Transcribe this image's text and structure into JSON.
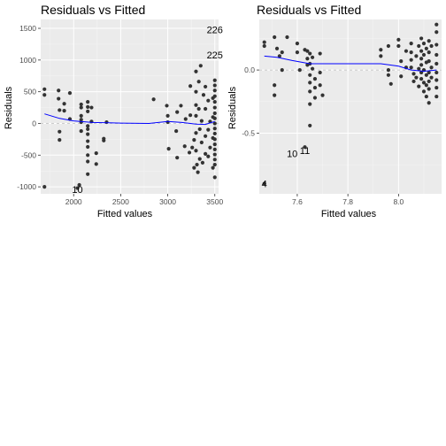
{
  "chart_data": [
    {
      "type": "scatter",
      "title": "Residuals vs Fitted",
      "xlabel": "Fitted values",
      "ylabel": "Residuals",
      "xlim": [
        1650,
        3540
      ],
      "ylim": [
        -1110,
        1640
      ],
      "xticks": [
        2000,
        2500,
        3000,
        3500
      ],
      "yticks": [
        -1000,
        -500,
        0,
        500,
        1000,
        1500
      ],
      "grid": true,
      "panel_bg": "#ebebeb",
      "point_color": "#333333",
      "smooth_color": "#0000ff",
      "zero_line_color": "#bdbdbd",
      "smooth": [
        [
          1690,
          150
        ],
        [
          1850,
          80
        ],
        [
          2000,
          40
        ],
        [
          2200,
          15
        ],
        [
          2500,
          5
        ],
        [
          2800,
          0
        ],
        [
          3000,
          30
        ],
        [
          3150,
          15
        ],
        [
          3300,
          -10
        ],
        [
          3400,
          -15
        ],
        [
          3500,
          30
        ]
      ],
      "labels": [
        {
          "text": "226",
          "x": 3500,
          "y": 1480
        },
        {
          "text": "225",
          "x": 3500,
          "y": 1085
        },
        {
          "text": "10",
          "x": 2040,
          "y": -1040
        }
      ],
      "points": [
        [
          1690,
          -1000
        ],
        [
          1690,
          540
        ],
        [
          1690,
          450
        ],
        [
          1840,
          520
        ],
        [
          1840,
          390
        ],
        [
          1850,
          -130
        ],
        [
          1850,
          -260
        ],
        [
          1850,
          210
        ],
        [
          1900,
          310
        ],
        [
          1900,
          200
        ],
        [
          1960,
          480
        ],
        [
          1960,
          70
        ],
        [
          2040,
          -1020
        ],
        [
          2060,
          -970
        ],
        [
          2080,
          300
        ],
        [
          2080,
          250
        ],
        [
          2080,
          120
        ],
        [
          2080,
          60
        ],
        [
          2080,
          20
        ],
        [
          2080,
          -120
        ],
        [
          2150,
          340
        ],
        [
          2150,
          260
        ],
        [
          2150,
          190
        ],
        [
          2150,
          -40
        ],
        [
          2150,
          -90
        ],
        [
          2150,
          -170
        ],
        [
          2150,
          -280
        ],
        [
          2150,
          -370
        ],
        [
          2150,
          -500
        ],
        [
          2150,
          -600
        ],
        [
          2150,
          -800
        ],
        [
          2190,
          250
        ],
        [
          2190,
          30
        ],
        [
          2240,
          -470
        ],
        [
          2240,
          -640
        ],
        [
          2320,
          -240
        ],
        [
          2320,
          -270
        ],
        [
          2350,
          20
        ],
        [
          2850,
          380
        ],
        [
          2990,
          280
        ],
        [
          3000,
          20
        ],
        [
          3010,
          -400
        ],
        [
          3000,
          120
        ],
        [
          3090,
          -120
        ],
        [
          3100,
          180
        ],
        [
          3100,
          -540
        ],
        [
          3140,
          280
        ],
        [
          3180,
          -360
        ],
        [
          3190,
          70
        ],
        [
          3230,
          -460
        ],
        [
          3240,
          590
        ],
        [
          3240,
          130
        ],
        [
          3260,
          -380
        ],
        [
          3280,
          -260
        ],
        [
          3280,
          -700
        ],
        [
          3300,
          820
        ],
        [
          3300,
          500
        ],
        [
          3300,
          290
        ],
        [
          3300,
          120
        ],
        [
          3300,
          -150
        ],
        [
          3300,
          -430
        ],
        [
          3310,
          -650
        ],
        [
          3320,
          -770
        ],
        [
          3330,
          660
        ],
        [
          3330,
          230
        ],
        [
          3340,
          -90
        ],
        [
          3340,
          -560
        ],
        [
          3350,
          910
        ],
        [
          3360,
          40
        ],
        [
          3360,
          -300
        ],
        [
          3370,
          -620
        ],
        [
          3380,
          450
        ],
        [
          3400,
          580
        ],
        [
          3400,
          230
        ],
        [
          3400,
          -200
        ],
        [
          3400,
          -480
        ],
        [
          3430,
          360
        ],
        [
          3430,
          -100
        ],
        [
          3430,
          -520
        ],
        [
          3450,
          30
        ],
        [
          3450,
          -380
        ],
        [
          3480,
          400
        ],
        [
          3480,
          100
        ],
        [
          3480,
          -230
        ],
        [
          3480,
          -700
        ],
        [
          3500,
          680
        ],
        [
          3500,
          600
        ],
        [
          3500,
          520
        ],
        [
          3500,
          430
        ],
        [
          3500,
          340
        ],
        [
          3500,
          250
        ],
        [
          3500,
          160
        ],
        [
          3500,
          80
        ],
        [
          3500,
          0
        ],
        [
          3500,
          -80
        ],
        [
          3500,
          -160
        ],
        [
          3500,
          -250
        ],
        [
          3500,
          -330
        ],
        [
          3500,
          -410
        ],
        [
          3500,
          -490
        ],
        [
          3500,
          -570
        ],
        [
          3500,
          -650
        ],
        [
          3500,
          -850
        ]
      ]
    },
    {
      "type": "scatter",
      "title": "Residuals vs Fitted",
      "xlabel": "Fitted values",
      "ylabel": "Residuals",
      "xlim": [
        7.45,
        8.17
      ],
      "ylim": [
        -0.98,
        0.4
      ],
      "xticks": [
        7.6,
        7.8,
        8.0
      ],
      "xtick_labels": [
        "7.6",
        "7.8",
        "8.0"
      ],
      "yticks": [
        -0.5,
        0.0
      ],
      "ytick_labels": [
        "-0.5",
        "0.0"
      ],
      "grid": true,
      "panel_bg": "#ebebeb",
      "point_color": "#333333",
      "smove_note": "",
      "smooth_color": "#0000ff",
      "zero_line_color": "#bdbdbd",
      "smooth": [
        [
          7.47,
          0.11
        ],
        [
          7.52,
          0.1
        ],
        [
          7.58,
          0.075
        ],
        [
          7.65,
          0.05
        ],
        [
          7.75,
          0.05
        ],
        [
          7.93,
          0.05
        ],
        [
          8.0,
          0.03
        ],
        [
          8.05,
          0.0
        ],
        [
          8.1,
          -0.01
        ],
        [
          8.15,
          0.0
        ]
      ],
      "labels": [
        {
          "text": "11",
          "x": 7.63,
          "y": -0.635
        },
        {
          "text": "10",
          "x": 7.58,
          "y": -0.66
        },
        {
          "text": "4",
          "x": 7.47,
          "y": -0.9
        }
      ],
      "points": [
        [
          7.47,
          0.22
        ],
        [
          7.47,
          0.19
        ],
        [
          7.47,
          -0.9
        ],
        [
          7.51,
          0.26
        ],
        [
          7.51,
          -0.12
        ],
        [
          7.51,
          -0.2
        ],
        [
          7.52,
          0.17
        ],
        [
          7.53,
          0.11
        ],
        [
          7.54,
          0.14
        ],
        [
          7.54,
          0.0
        ],
        [
          7.56,
          0.26
        ],
        [
          7.6,
          0.21
        ],
        [
          7.6,
          0.14
        ],
        [
          7.61,
          0.0
        ],
        [
          7.63,
          0.16
        ],
        [
          7.63,
          -0.61
        ],
        [
          7.64,
          0.15
        ],
        [
          7.64,
          0.09
        ],
        [
          7.64,
          0.04
        ],
        [
          7.65,
          0.13
        ],
        [
          7.65,
          0.05
        ],
        [
          7.65,
          -0.04
        ],
        [
          7.65,
          -0.1
        ],
        [
          7.65,
          -0.17
        ],
        [
          7.65,
          -0.27
        ],
        [
          7.65,
          -0.44
        ],
        [
          7.66,
          0.1
        ],
        [
          7.66,
          0.01
        ],
        [
          7.67,
          -0.07
        ],
        [
          7.67,
          -0.14
        ],
        [
          7.67,
          -0.22
        ],
        [
          7.69,
          0.13
        ],
        [
          7.69,
          -0.02
        ],
        [
          7.69,
          -0.12
        ],
        [
          7.7,
          -0.2
        ],
        [
          7.93,
          0.16
        ],
        [
          7.93,
          0.11
        ],
        [
          7.96,
          0.19
        ],
        [
          7.96,
          0.0
        ],
        [
          7.96,
          -0.04
        ],
        [
          7.97,
          -0.11
        ],
        [
          8.0,
          0.24
        ],
        [
          8.0,
          0.19
        ],
        [
          8.01,
          0.07
        ],
        [
          8.01,
          -0.05
        ],
        [
          8.03,
          0.15
        ],
        [
          8.03,
          0.02
        ],
        [
          8.05,
          0.21
        ],
        [
          8.05,
          0.14
        ],
        [
          8.05,
          0.08
        ],
        [
          8.05,
          0.02
        ],
        [
          8.06,
          -0.03
        ],
        [
          8.06,
          -0.09
        ],
        [
          8.07,
          0.11
        ],
        [
          8.07,
          -0.06
        ],
        [
          8.08,
          0.19
        ],
        [
          8.08,
          0.01
        ],
        [
          8.08,
          -0.13
        ],
        [
          8.09,
          0.25
        ],
        [
          8.09,
          0.15
        ],
        [
          8.09,
          0.09
        ],
        [
          8.09,
          0.04
        ],
        [
          8.09,
          -0.02
        ],
        [
          8.09,
          -0.07
        ],
        [
          8.1,
          0.21
        ],
        [
          8.1,
          0.12
        ],
        [
          8.1,
          0.0
        ],
        [
          8.1,
          -0.1
        ],
        [
          8.1,
          -0.17
        ],
        [
          8.11,
          0.17
        ],
        [
          8.11,
          0.06
        ],
        [
          8.11,
          -0.04
        ],
        [
          8.11,
          -0.12
        ],
        [
          8.11,
          -0.21
        ],
        [
          8.12,
          0.23
        ],
        [
          8.12,
          0.14
        ],
        [
          8.12,
          0.07
        ],
        [
          8.12,
          -0.02
        ],
        [
          8.12,
          -0.09
        ],
        [
          8.12,
          -0.15
        ],
        [
          8.12,
          -0.26
        ],
        [
          8.13,
          0.19
        ],
        [
          8.13,
          0.02
        ],
        [
          8.13,
          -0.06
        ],
        [
          8.15,
          0.36
        ],
        [
          8.15,
          0.3
        ],
        [
          8.15,
          0.2
        ],
        [
          8.15,
          0.12
        ],
        [
          8.15,
          0.05
        ],
        [
          8.15,
          -0.02
        ],
        [
          8.15,
          -0.08
        ],
        [
          8.15,
          -0.14
        ],
        [
          8.15,
          -0.21
        ]
      ]
    }
  ]
}
